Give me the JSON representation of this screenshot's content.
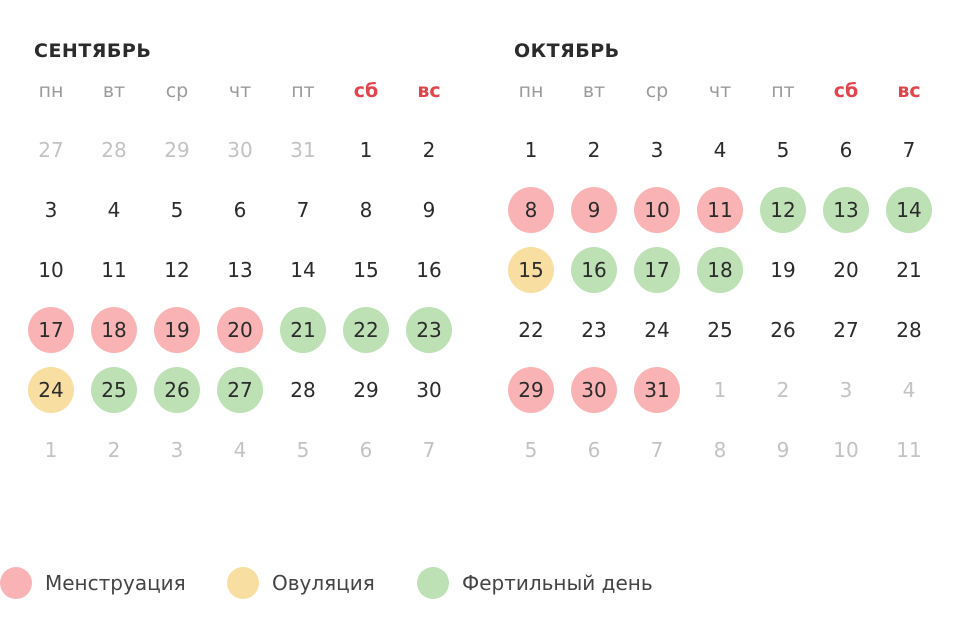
{
  "colors": {
    "menstruation": "#f9b3b5",
    "ovulation": "#f8dea0",
    "fertile": "#bde0b5",
    "weekend_text": "#e0454b",
    "day_text": "#2b2b2b",
    "outside_month_text": "#c3c3c3"
  },
  "weekdays": [
    {
      "label": "пн",
      "weekend": false
    },
    {
      "label": "вт",
      "weekend": false
    },
    {
      "label": "ср",
      "weekend": false
    },
    {
      "label": "чт",
      "weekend": false
    },
    {
      "label": "пт",
      "weekend": false
    },
    {
      "label": "сб",
      "weekend": true
    },
    {
      "label": "вс",
      "weekend": true
    }
  ],
  "months": [
    {
      "title": "СЕНТЯБРЬ",
      "weeks": [
        [
          {
            "d": "27",
            "outside": true
          },
          {
            "d": "28",
            "outside": true
          },
          {
            "d": "29",
            "outside": true
          },
          {
            "d": "30",
            "outside": true
          },
          {
            "d": "31",
            "outside": true
          },
          {
            "d": "1"
          },
          {
            "d": "2"
          }
        ],
        [
          {
            "d": "3"
          },
          {
            "d": "4"
          },
          {
            "d": "5"
          },
          {
            "d": "6"
          },
          {
            "d": "7"
          },
          {
            "d": "8"
          },
          {
            "d": "9"
          }
        ],
        [
          {
            "d": "10"
          },
          {
            "d": "11"
          },
          {
            "d": "12"
          },
          {
            "d": "13"
          },
          {
            "d": "14"
          },
          {
            "d": "15"
          },
          {
            "d": "16"
          }
        ],
        [
          {
            "d": "17",
            "status": "menstruation"
          },
          {
            "d": "18",
            "status": "menstruation"
          },
          {
            "d": "19",
            "status": "menstruation"
          },
          {
            "d": "20",
            "status": "menstruation"
          },
          {
            "d": "21",
            "status": "fertile"
          },
          {
            "d": "22",
            "status": "fertile"
          },
          {
            "d": "23",
            "status": "fertile"
          }
        ],
        [
          {
            "d": "24",
            "status": "ovulation"
          },
          {
            "d": "25",
            "status": "fertile"
          },
          {
            "d": "26",
            "status": "fertile"
          },
          {
            "d": "27",
            "status": "fertile"
          },
          {
            "d": "28"
          },
          {
            "d": "29"
          },
          {
            "d": "30"
          }
        ],
        [
          {
            "d": "1",
            "outside": true
          },
          {
            "d": "2",
            "outside": true
          },
          {
            "d": "3",
            "outside": true
          },
          {
            "d": "4",
            "outside": true
          },
          {
            "d": "5",
            "outside": true
          },
          {
            "d": "6",
            "outside": true
          },
          {
            "d": "7",
            "outside": true
          }
        ]
      ]
    },
    {
      "title": "ОКТЯБРЬ",
      "weeks": [
        [
          {
            "d": "1"
          },
          {
            "d": "2"
          },
          {
            "d": "3"
          },
          {
            "d": "4"
          },
          {
            "d": "5"
          },
          {
            "d": "6"
          },
          {
            "d": "7"
          }
        ],
        [
          {
            "d": "8",
            "status": "menstruation"
          },
          {
            "d": "9",
            "status": "menstruation"
          },
          {
            "d": "10",
            "status": "menstruation"
          },
          {
            "d": "11",
            "status": "menstruation"
          },
          {
            "d": "12",
            "status": "fertile"
          },
          {
            "d": "13",
            "status": "fertile"
          },
          {
            "d": "14",
            "status": "fertile"
          }
        ],
        [
          {
            "d": "15",
            "status": "ovulation"
          },
          {
            "d": "16",
            "status": "fertile"
          },
          {
            "d": "17",
            "status": "fertile"
          },
          {
            "d": "18",
            "status": "fertile"
          },
          {
            "d": "19"
          },
          {
            "d": "20"
          },
          {
            "d": "21"
          }
        ],
        [
          {
            "d": "22"
          },
          {
            "d": "23"
          },
          {
            "d": "24"
          },
          {
            "d": "25"
          },
          {
            "d": "26"
          },
          {
            "d": "27"
          },
          {
            "d": "28"
          }
        ],
        [
          {
            "d": "29",
            "status": "menstruation"
          },
          {
            "d": "30",
            "status": "menstruation"
          },
          {
            "d": "31",
            "status": "menstruation"
          },
          {
            "d": "1",
            "outside": true
          },
          {
            "d": "2",
            "outside": true
          },
          {
            "d": "3",
            "outside": true
          },
          {
            "d": "4",
            "outside": true
          }
        ],
        [
          {
            "d": "5",
            "outside": true
          },
          {
            "d": "6",
            "outside": true
          },
          {
            "d": "7",
            "outside": true
          },
          {
            "d": "8",
            "outside": true
          },
          {
            "d": "9",
            "outside": true
          },
          {
            "d": "10",
            "outside": true
          },
          {
            "d": "11",
            "outside": true
          }
        ]
      ]
    }
  ],
  "legend": [
    {
      "status": "menstruation",
      "label": "Менструация"
    },
    {
      "status": "ovulation",
      "label": "Овуляция"
    },
    {
      "status": "fertile",
      "label": "Фертильный день"
    }
  ]
}
